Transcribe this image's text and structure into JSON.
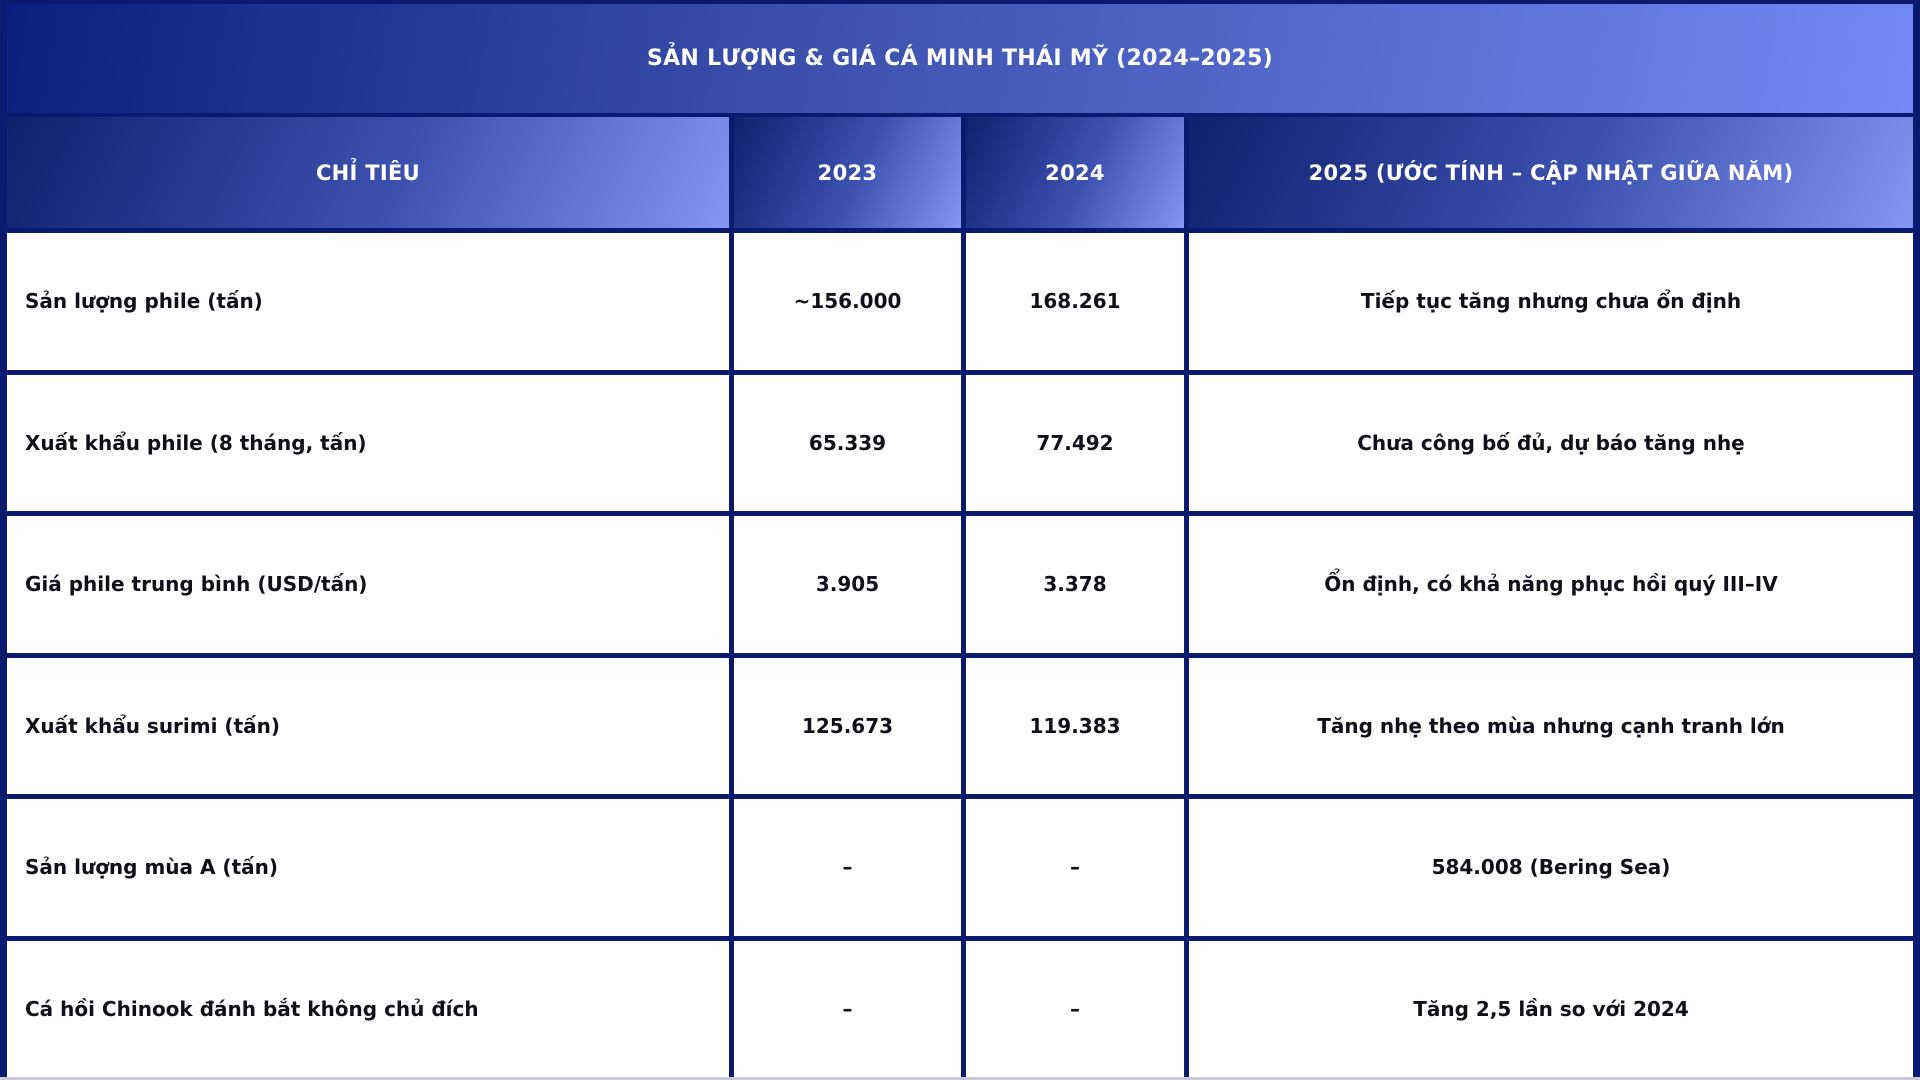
{
  "chart_data": {
    "type": "table",
    "title": "SẢN LƯỢNG & GIÁ CÁ MINH THÁI MỸ (2024–2025)",
    "columns": [
      "CHỈ TIÊU",
      "2023",
      "2024",
      "2025 (ƯỚC TÍNH – CẬP NHẬT GIỮA NĂM)"
    ],
    "rows": [
      [
        "Sản lượng phile (tấn)",
        "~156.000",
        "168.261",
        "Tiếp tục tăng nhưng chưa ổn định"
      ],
      [
        "Xuất khẩu phile (8 tháng, tấn)",
        "65.339",
        "77.492",
        "Chưa công bố đủ, dự báo tăng nhẹ"
      ],
      [
        "Giá phile trung bình (USD/tấn)",
        "3.905",
        "3.378",
        "Ổn định, có khả năng phục hồi quý III–IV"
      ],
      [
        "Xuất khẩu surimi (tấn)",
        "125.673",
        "119.383",
        "Tăng nhẹ theo mùa nhưng cạnh tranh lớn"
      ],
      [
        "Sản lượng mùa A (tấn)",
        "–",
        "–",
        "584.008 (Bering Sea)"
      ],
      [
        "Cá hồi Chinook đánh bắt không chủ đích",
        "–",
        "–",
        "Tăng 2,5 lần so với 2024"
      ]
    ],
    "layout": {
      "grid": true,
      "header_style": "gradient navy-to-periwinkle, white bold text",
      "body_style": "white cells, dark navy borders, bold dark text"
    }
  },
  "colors": {
    "border_navy": "#0A1A6E",
    "title_gradient_start": "#0A2081",
    "title_gradient_end": "#7289F5",
    "header_gradient_start": "#10206F",
    "header_gradient_end": "#8495F2",
    "body_text": "#101019",
    "bottom_strip_gray": "#C9CBD4"
  }
}
